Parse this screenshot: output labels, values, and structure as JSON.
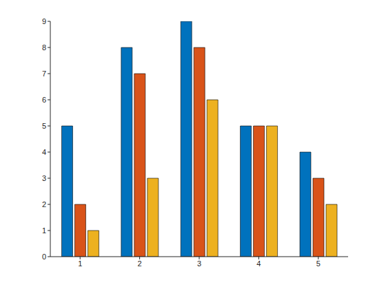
{
  "chart_data": {
    "type": "bar",
    "categories": [
      "1",
      "2",
      "3",
      "4",
      "5"
    ],
    "series": [
      {
        "color": "#0072bd",
        "values": [
          5,
          8,
          9,
          5,
          4
        ]
      },
      {
        "color": "#d95319",
        "values": [
          2,
          7,
          8,
          5,
          3
        ]
      },
      {
        "color": "#edb120",
        "values": [
          1,
          3,
          6,
          5,
          2
        ]
      }
    ],
    "ylim": [
      0,
      9
    ],
    "yticks": [
      0,
      1,
      2,
      3,
      4,
      5,
      6,
      7,
      8,
      9
    ],
    "grid": false
  }
}
